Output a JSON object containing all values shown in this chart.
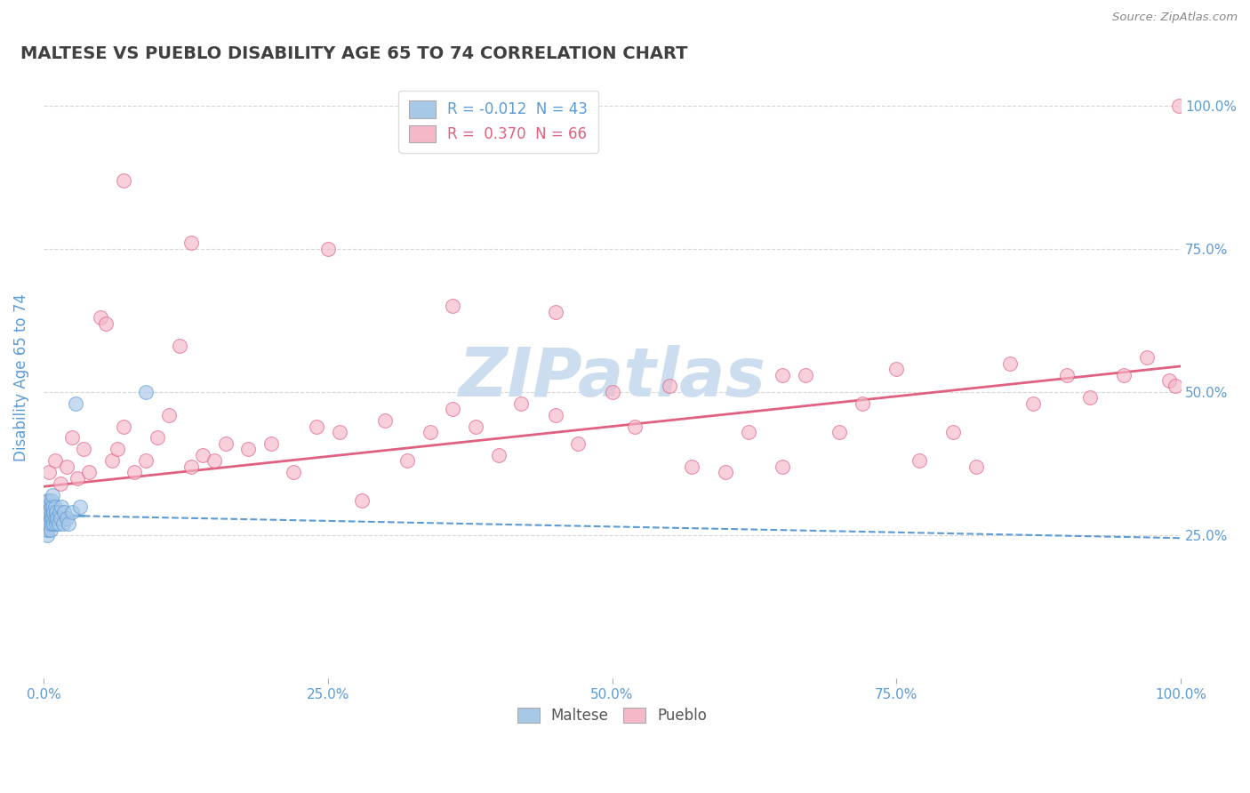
{
  "title": "MALTESE VS PUEBLO DISABILITY AGE 65 TO 74 CORRELATION CHART",
  "ylabel": "Disability Age 65 to 74",
  "source": "Source: ZipAtlas.com",
  "maltese_R": -0.012,
  "maltese_N": 43,
  "pueblo_R": 0.37,
  "pueblo_N": 66,
  "maltese_color": "#a8c8e8",
  "pueblo_color": "#f4b8c8",
  "maltese_line_color": "#5b9bd5",
  "pueblo_line_color": "#e06080",
  "background_color": "#ffffff",
  "grid_color": "#cccccc",
  "title_color": "#404040",
  "axis_label_color": "#5b9bd5",
  "watermark_color": "#ccddf0",
  "xlim": [
    0.0,
    1.0
  ],
  "ylim": [
    0.0,
    1.05
  ],
  "maltese_slope": -0.04,
  "maltese_intercept": 0.285,
  "pueblo_slope": 0.21,
  "pueblo_intercept": 0.335,
  "maltese_x": [
    0.001,
    0.001,
    0.002,
    0.002,
    0.002,
    0.003,
    0.003,
    0.003,
    0.003,
    0.004,
    0.004,
    0.004,
    0.005,
    0.005,
    0.005,
    0.006,
    0.006,
    0.006,
    0.007,
    0.007,
    0.007,
    0.008,
    0.008,
    0.008,
    0.009,
    0.009,
    0.01,
    0.01,
    0.011,
    0.011,
    0.012,
    0.013,
    0.014,
    0.015,
    0.016,
    0.017,
    0.018,
    0.02,
    0.022,
    0.025,
    0.028,
    0.032,
    0.09
  ],
  "maltese_y": [
    0.29,
    0.27,
    0.3,
    0.28,
    0.26,
    0.29,
    0.31,
    0.27,
    0.25,
    0.3,
    0.28,
    0.26,
    0.31,
    0.29,
    0.27,
    0.3,
    0.28,
    0.26,
    0.31,
    0.29,
    0.27,
    0.3,
    0.28,
    0.32,
    0.29,
    0.27,
    0.3,
    0.28,
    0.29,
    0.27,
    0.28,
    0.27,
    0.29,
    0.28,
    0.3,
    0.27,
    0.29,
    0.28,
    0.27,
    0.29,
    0.48,
    0.3,
    0.5
  ],
  "pueblo_x": [
    0.005,
    0.01,
    0.015,
    0.02,
    0.025,
    0.03,
    0.035,
    0.04,
    0.05,
    0.055,
    0.06,
    0.065,
    0.07,
    0.08,
    0.09,
    0.1,
    0.11,
    0.12,
    0.13,
    0.14,
    0.15,
    0.16,
    0.18,
    0.2,
    0.22,
    0.24,
    0.26,
    0.28,
    0.3,
    0.32,
    0.34,
    0.36,
    0.38,
    0.4,
    0.42,
    0.45,
    0.47,
    0.5,
    0.52,
    0.55,
    0.57,
    0.6,
    0.62,
    0.65,
    0.67,
    0.7,
    0.72,
    0.75,
    0.77,
    0.8,
    0.82,
    0.85,
    0.87,
    0.9,
    0.92,
    0.95,
    0.97,
    0.99,
    0.995,
    0.998,
    0.07,
    0.13,
    0.25,
    0.36,
    0.45,
    0.65
  ],
  "pueblo_y": [
    0.36,
    0.38,
    0.34,
    0.37,
    0.42,
    0.35,
    0.4,
    0.36,
    0.63,
    0.62,
    0.38,
    0.4,
    0.44,
    0.36,
    0.38,
    0.42,
    0.46,
    0.58,
    0.37,
    0.39,
    0.38,
    0.41,
    0.4,
    0.41,
    0.36,
    0.44,
    0.43,
    0.31,
    0.45,
    0.38,
    0.43,
    0.47,
    0.44,
    0.39,
    0.48,
    0.46,
    0.41,
    0.5,
    0.44,
    0.51,
    0.37,
    0.36,
    0.43,
    0.37,
    0.53,
    0.43,
    0.48,
    0.54,
    0.38,
    0.43,
    0.37,
    0.55,
    0.48,
    0.53,
    0.49,
    0.53,
    0.56,
    0.52,
    0.51,
    1.0,
    0.87,
    0.76,
    0.75,
    0.65,
    0.64,
    0.53
  ]
}
